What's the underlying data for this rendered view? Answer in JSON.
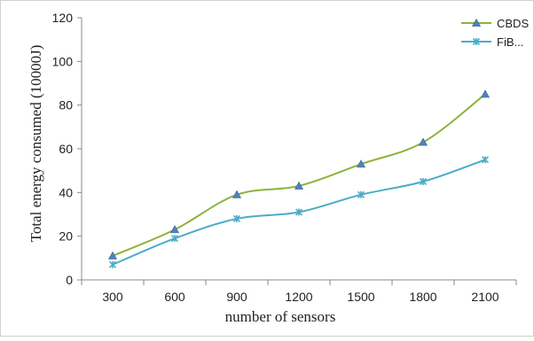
{
  "chart_data": {
    "type": "line",
    "title": "",
    "xlabel": "number of sensors",
    "ylabel": "Total energy consumed (10000J)",
    "categories": [
      "300",
      "600",
      "900",
      "1200",
      "1500",
      "1800",
      "2100"
    ],
    "ylim": [
      0,
      120
    ],
    "yticks": [
      "0",
      "20",
      "40",
      "60",
      "80",
      "100",
      "120"
    ],
    "grid": false,
    "legend_position": "top-right",
    "series": [
      {
        "name": "CBDS",
        "values": [
          11,
          23,
          39,
          43,
          53,
          63,
          85
        ],
        "color": "#8db23c",
        "marker": "triangle"
      },
      {
        "name": "FiB...",
        "values": [
          7,
          19,
          28,
          31,
          39,
          45,
          55
        ],
        "color": "#4bacc6",
        "marker": "star"
      }
    ]
  }
}
